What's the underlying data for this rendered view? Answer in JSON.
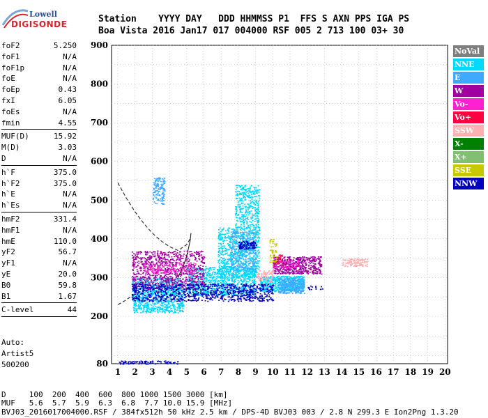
{
  "header": {
    "row1": "Station    YYYY DAY   DDD HHMMSS P1  FFS S AXN PPS IGA PS",
    "row2": "Boa Vista 2016 Jan17 017 004000 RSF 005 2 713 100 03+ 30"
  },
  "logo": {
    "line1": "Lowell",
    "line2": "DIGISONDE"
  },
  "params": {
    "group1": [
      {
        "label": "foF2",
        "value": "5.250"
      },
      {
        "label": "foF1",
        "value": "N/A"
      },
      {
        "label": "foF1p",
        "value": "N/A"
      },
      {
        "label": "foE",
        "value": "N/A"
      },
      {
        "label": "foEp",
        "value": "0.43"
      },
      {
        "label": "fxI",
        "value": "6.05"
      },
      {
        "label": "foEs",
        "value": "N/A"
      },
      {
        "label": "fmin",
        "value": "4.55"
      }
    ],
    "group2": [
      {
        "label": "MUF(D)",
        "value": "15.92"
      },
      {
        "label": "M(D)",
        "value": "3.03"
      },
      {
        "label": "D",
        "value": "N/A"
      }
    ],
    "group3": [
      {
        "label": "h`F",
        "value": "375.0"
      },
      {
        "label": "h`F2",
        "value": "375.0"
      },
      {
        "label": "h`E",
        "value": "N/A"
      },
      {
        "label": "h`Es",
        "value": "N/A"
      }
    ],
    "group4": [
      {
        "label": "hmF2",
        "value": "331.4"
      },
      {
        "label": "hmF1",
        "value": "N/A"
      },
      {
        "label": "hmE",
        "value": "110.0"
      },
      {
        "label": "yF2",
        "value": "56.7"
      },
      {
        "label": "yF1",
        "value": "N/A"
      },
      {
        "label": "yE",
        "value": "20.0"
      },
      {
        "label": "B0",
        "value": "59.8"
      },
      {
        "label": "B1",
        "value": "1.67"
      }
    ],
    "group5": [
      {
        "label": "C-level",
        "value": "44"
      }
    ]
  },
  "auto": {
    "line1": "Auto:",
    "line2": "Artist5",
    "line3": "500200"
  },
  "legend": [
    {
      "label": "NoVal",
      "color": "#7f7f7f"
    },
    {
      "label": "NNE",
      "color": "#00d8ff"
    },
    {
      "label": "E",
      "color": "#3fa8ff"
    },
    {
      "label": "W",
      "color": "#a000a0"
    },
    {
      "label": "Vo-",
      "color": "#ff20d0"
    },
    {
      "label": "Vo+",
      "color": "#ff0040"
    },
    {
      "label": "SSW",
      "color": "#ffb0b0"
    },
    {
      "label": "X-",
      "color": "#008000"
    },
    {
      "label": "X+",
      "color": "#80c070"
    },
    {
      "label": "SSE",
      "color": "#c8c800"
    },
    {
      "label": "NNW",
      "color": "#0000c0"
    }
  ],
  "footer": {
    "dline": "D     100  200  400  600  800 1000 1500 3000 [km]",
    "mufline": "MUF   5.6  5.7  5.9  6.3  6.8  7.7 10.0 15.9 [MHz]",
    "fileline": "BVJ03_2016017004000.RSF / 384fx512h 50 kHz 2.5 km / DPS-4D BVJ03 003 / 2.8 N 299.3 E Ion2Png 1.3.20"
  },
  "chart_data": {
    "type": "scatter",
    "x_ticks": [
      "1",
      "2",
      "3",
      "4",
      "5",
      "6",
      "7",
      "8",
      "9",
      "10",
      "11",
      "12",
      "13",
      "14",
      "15",
      "16",
      "17",
      "18",
      "19",
      "20"
    ],
    "y_ticks": [
      "80",
      "200",
      "300",
      "400",
      "500",
      "600",
      "700",
      "800",
      "900"
    ],
    "xlim": [
      1,
      20
    ],
    "ylim": [
      80,
      900
    ],
    "series": [
      {
        "name": "NNE",
        "color": "#00d8ff",
        "clusters": [
          {
            "x": [
              1.8,
              4.8
            ],
            "y": [
              210,
              300
            ],
            "density": 0.9
          },
          {
            "x": [
              5.0,
              9.0
            ],
            "y": [
              255,
              330
            ],
            "density": 0.9
          },
          {
            "x": [
              6.8,
              7.8
            ],
            "y": [
              300,
              430
            ],
            "density": 0.35
          },
          {
            "x": [
              7.8,
              9.2
            ],
            "y": [
              300,
              540
            ],
            "density": 0.35
          },
          {
            "x": [
              9.2,
              11.8
            ],
            "y": [
              265,
              305
            ],
            "density": 0.7
          }
        ]
      },
      {
        "name": "E",
        "color": "#3fa8ff",
        "clusters": [
          {
            "x": [
              3.0,
              3.7
            ],
            "y": [
              490,
              560
            ],
            "density": 0.4
          },
          {
            "x": [
              10.3,
              11.8
            ],
            "y": [
              260,
              300
            ],
            "density": 0.8
          },
          {
            "x": [
              7.5,
              9.0
            ],
            "y": [
              320,
              420
            ],
            "density": 0.3
          }
        ]
      },
      {
        "name": "W",
        "color": "#a000a0",
        "clusters": [
          {
            "x": [
              1.8,
              6.0
            ],
            "y": [
              270,
              370
            ],
            "density": 0.8
          },
          {
            "x": [
              10.0,
              12.8
            ],
            "y": [
              310,
              355
            ],
            "density": 0.6
          }
        ]
      },
      {
        "name": "Vo-",
        "color": "#ff20d0",
        "clusters": [
          {
            "x": [
              2.5,
              5.5
            ],
            "y": [
              310,
              340
            ],
            "density": 0.25
          },
          {
            "x": [
              10.0,
              11.5
            ],
            "y": [
              325,
              345
            ],
            "density": 0.3
          }
        ]
      },
      {
        "name": "Vo+",
        "color": "#ff0040",
        "clusters": [
          {
            "x": [
              10.0,
              10.6
            ],
            "y": [
              330,
              360
            ],
            "density": 0.2
          }
        ]
      },
      {
        "name": "SSW",
        "color": "#ffb0b0",
        "clusters": [
          {
            "x": [
              14.0,
              15.5
            ],
            "y": [
              330,
              350
            ],
            "density": 0.6
          },
          {
            "x": [
              9.0,
              10.0
            ],
            "y": [
              290,
              320
            ],
            "density": 0.4
          }
        ]
      },
      {
        "name": "SSE",
        "color": "#c8c800",
        "clusters": [
          {
            "x": [
              9.8,
              10.2
            ],
            "y": [
              340,
              400
            ],
            "density": 0.3
          }
        ]
      },
      {
        "name": "NNW",
        "color": "#0000c0",
        "clusters": [
          {
            "x": [
              1.8,
              10.0
            ],
            "y": [
              240,
              285
            ],
            "density": 0.9
          },
          {
            "x": [
              8.0,
              9.0
            ],
            "y": [
              375,
              395
            ],
            "density": 0.7
          },
          {
            "x": [
              1.0,
              4.5
            ],
            "y": [
              80,
              88
            ],
            "density": 0.5
          },
          {
            "x": [
              12.0,
              13.0
            ],
            "y": [
              270,
              280
            ],
            "density": 0.2
          }
        ]
      }
    ],
    "profile_dashed": {
      "x": [
        1.0,
        1.5,
        2.0,
        2.5,
        3.0,
        3.5,
        4.0,
        4.5,
        5.0,
        5.2
      ],
      "y": [
        545,
        505,
        470,
        440,
        415,
        395,
        380,
        370,
        385,
        400
      ]
    },
    "profile_low_dashed": {
      "x": [
        1.0,
        1.4,
        1.8,
        2.2
      ],
      "y": [
        230,
        240,
        252,
        262
      ]
    },
    "trace_solid": {
      "x": [
        4.5,
        4.8,
        5.0,
        5.1,
        5.2,
        5.25
      ],
      "y": [
        300,
        330,
        355,
        375,
        395,
        415
      ]
    }
  }
}
